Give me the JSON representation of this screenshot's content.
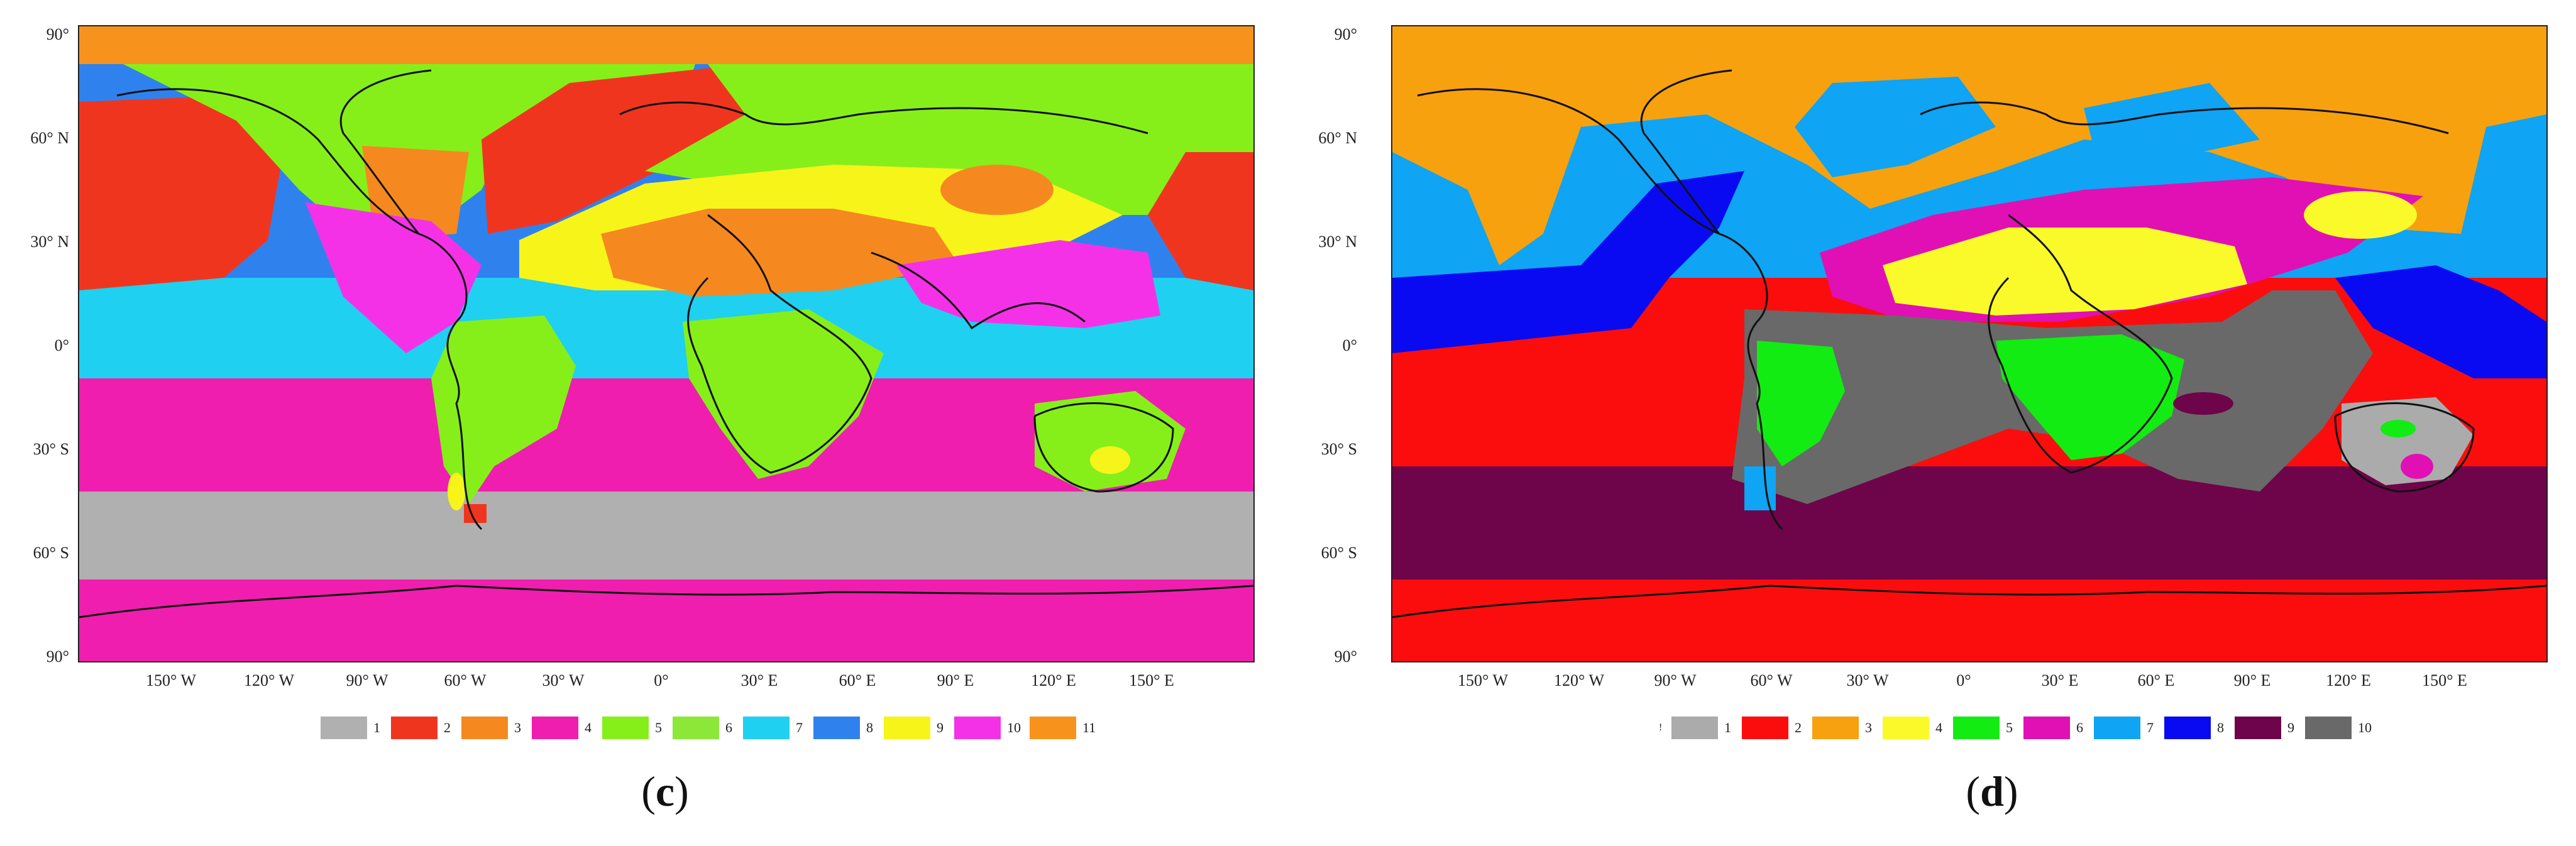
{
  "panels": [
    {
      "id": "c",
      "label_open": "(",
      "label_letter": "c",
      "label_close": ")",
      "lat_labels": [
        "90°",
        "60° N",
        "30° N",
        "0°",
        "30° S",
        "60° S",
        "90°"
      ],
      "lon_labels": [
        "150° W",
        "120° W",
        "90° W",
        "60° W",
        "30° W",
        "0°",
        "30° E",
        "60° E",
        "90° E",
        "120° E",
        "150° E"
      ],
      "legend_prefix": "",
      "legend": [
        {
          "label": "1",
          "color": "#b0b0b0"
        },
        {
          "label": "2",
          "color": "#f0351f"
        },
        {
          "label": "3",
          "color": "#f5891f"
        },
        {
          "label": "4",
          "color": "#ef1eae"
        },
        {
          "label": "5",
          "color": "#86ef1a"
        },
        {
          "label": "6",
          "color": "#8be838"
        },
        {
          "label": "7",
          "color": "#1fd0f0"
        },
        {
          "label": "8",
          "color": "#2f82ee"
        },
        {
          "label": "9",
          "color": "#f7f41a"
        },
        {
          "label": "10",
          "color": "#f531e8"
        },
        {
          "label": "11",
          "color": "#f7931c"
        }
      ]
    },
    {
      "id": "d",
      "label_open": "(",
      "label_letter": "d",
      "label_close": ")",
      "lat_labels": [
        "90°",
        "60° N",
        "30° N",
        "0°",
        "30° S",
        "60° S",
        "90°"
      ],
      "lon_labels": [
        "150° W",
        "120° W",
        "90° W",
        "60° W",
        "30° W",
        "0°",
        "30° E",
        "60° E",
        "90° E",
        "120° E",
        "150° E"
      ],
      "legend_prefix": "!",
      "legend": [
        {
          "label": "1",
          "color": "#ababab"
        },
        {
          "label": "2",
          "color": "#fb0d0d"
        },
        {
          "label": "3",
          "color": "#f7a10f"
        },
        {
          "label": "4",
          "color": "#fafa2a"
        },
        {
          "label": "5",
          "color": "#12ec12"
        },
        {
          "label": "6",
          "color": "#e010b4"
        },
        {
          "label": "7",
          "color": "#0fa4f4"
        },
        {
          "label": "8",
          "color": "#0a0af2"
        },
        {
          "label": "9",
          "color": "#6e0449"
        },
        {
          "label": "10",
          "color": "#696969"
        }
      ]
    }
  ]
}
